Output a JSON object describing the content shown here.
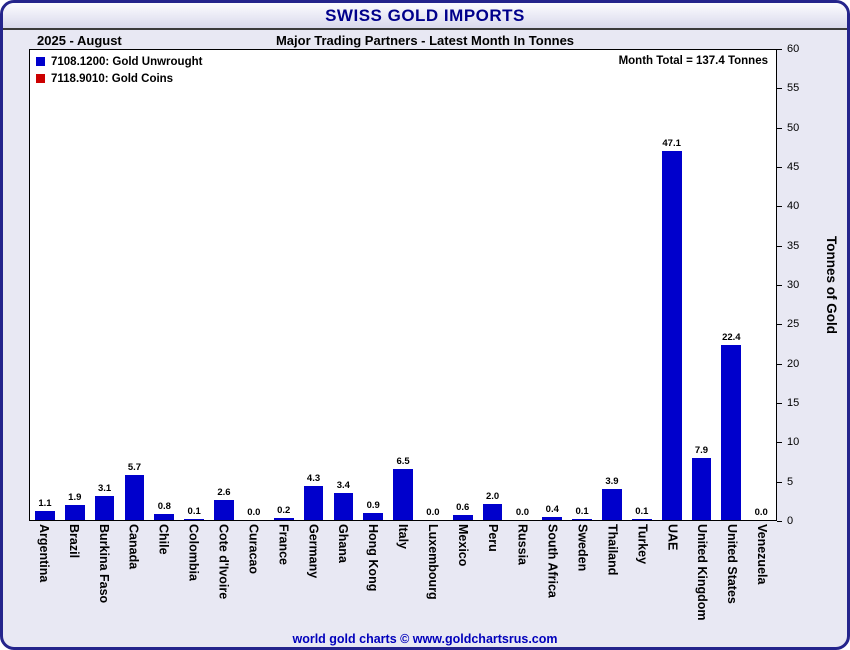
{
  "header": {
    "title": "SWISS GOLD IMPORTS",
    "date_label": "2025 - August",
    "subtitle": "Major Trading Partners - Latest Month In Tonnes"
  },
  "legend": [
    {
      "label": "7108.1200: Gold Unwrought",
      "color": "#0000cc"
    },
    {
      "label": "7118.9010: Gold Coins",
      "color": "#cc0000"
    }
  ],
  "annotations": {
    "month_total": "Month Total = 137.4 Tonnes"
  },
  "chart_data": {
    "type": "bar",
    "title": "SWISS GOLD IMPORTS",
    "subtitle": "Major Trading Partners - Latest Month In Tonnes",
    "categories": [
      "Argentina",
      "Brazil",
      "Burkina Faso",
      "Canada",
      "Chile",
      "Colombia",
      "Cote d'Ivoire",
      "Curacao",
      "France",
      "Germany",
      "Ghana",
      "Hong Kong",
      "Italy",
      "Luxembourg",
      "Mexico",
      "Peru",
      "Russia",
      "South Africa",
      "Sweden",
      "Thailand",
      "Turkey",
      "UAE",
      "United Kingdom",
      "United States",
      "Venezuela"
    ],
    "series": [
      {
        "name": "7108.1200: Gold Unwrought",
        "color": "#0000cc",
        "values": [
          1.1,
          1.9,
          3.1,
          5.7,
          0.8,
          0.1,
          2.6,
          0.0,
          0.2,
          4.3,
          3.4,
          0.9,
          6.5,
          0.0,
          0.6,
          2.0,
          0.0,
          0.4,
          0.1,
          3.9,
          0.1,
          47.1,
          7.9,
          22.4,
          0.0
        ]
      }
    ],
    "xlabel": "",
    "ylabel": "Tonnes of Gold",
    "ylim": [
      0,
      60
    ],
    "yticks": [
      0,
      5,
      10,
      15,
      20,
      25,
      30,
      35,
      40,
      45,
      50,
      55,
      60
    ],
    "grid": false,
    "legend_position": "top-left",
    "value_labels": true
  },
  "footer": {
    "credit": "world gold charts © www.goldchartsrus.com"
  }
}
